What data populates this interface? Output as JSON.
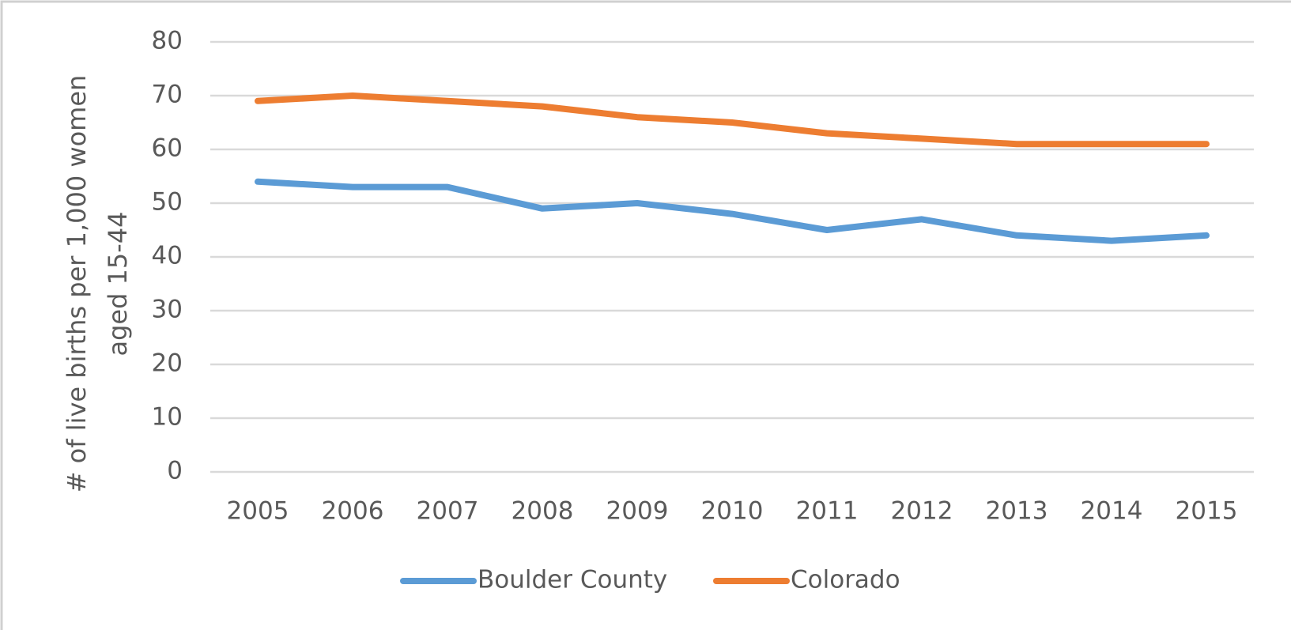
{
  "chart_data": {
    "type": "line",
    "ylabel": [
      "# of live births per 1,000 women",
      "aged 15-44"
    ],
    "categories": [
      "2005",
      "2006",
      "2007",
      "2008",
      "2009",
      "2010",
      "2011",
      "2012",
      "2013",
      "2014",
      "2015"
    ],
    "series": [
      {
        "name": "Boulder County",
        "color": "#5b9bd5",
        "values": [
          54,
          53,
          53,
          49,
          50,
          48,
          45,
          47,
          44,
          43,
          44
        ]
      },
      {
        "name": "Colorado",
        "color": "#ed7d31",
        "values": [
          69,
          70,
          69,
          68,
          66,
          65,
          63,
          62,
          61,
          61,
          61
        ]
      }
    ],
    "ylim": [
      0,
      80
    ],
    "yticks": [
      0,
      10,
      20,
      30,
      40,
      50,
      60,
      70,
      80
    ],
    "grid": true,
    "legend": "bottom"
  }
}
